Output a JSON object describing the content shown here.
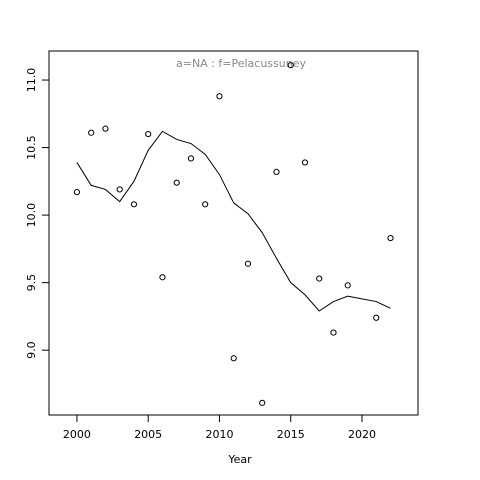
{
  "chart_data": {
    "type": "scatter",
    "title": "a=NA  :  f=Pelacussuney",
    "x_label": "Year",
    "x": [
      2000,
      2001,
      2002,
      2003,
      2004,
      2005,
      2006,
      2007,
      2008,
      2009,
      2010,
      2011,
      2012,
      2013,
      2014,
      2015,
      2016,
      2017,
      2018,
      2019,
      2020,
      2021,
      2022
    ],
    "series": [
      {
        "style": "points",
        "color": "#000000",
        "values": [
          10.17,
          10.61,
          10.64,
          10.19,
          10.08,
          10.6,
          9.54,
          10.24,
          10.42,
          10.08,
          10.88,
          8.94,
          9.64,
          8.61,
          10.32,
          11.11,
          10.39,
          9.53,
          9.13,
          9.48,
          null,
          9.24,
          9.83
        ]
      },
      {
        "style": "line",
        "color": "#000000",
        "values": [
          10.39,
          10.22,
          10.19,
          10.1,
          10.25,
          10.48,
          10.62,
          10.56,
          10.53,
          10.45,
          10.3,
          10.09,
          10.01,
          9.87,
          9.68,
          9.5,
          9.41,
          9.29,
          9.36,
          9.4,
          9.38,
          9.36,
          9.31
        ]
      }
    ],
    "xlim": [
      1998.04,
      2023.93
    ],
    "ylim": [
      8.52,
      11.215
    ],
    "xticks": [
      2000,
      2005,
      2010,
      2015,
      2020
    ],
    "yticks": [
      {
        "value": 9.0,
        "label": "9.0"
      },
      9.5,
      {
        "value": 10.0,
        "label": "10.0"
      },
      10.5,
      {
        "value": 11.0,
        "label": "11.0"
      }
    ]
  }
}
